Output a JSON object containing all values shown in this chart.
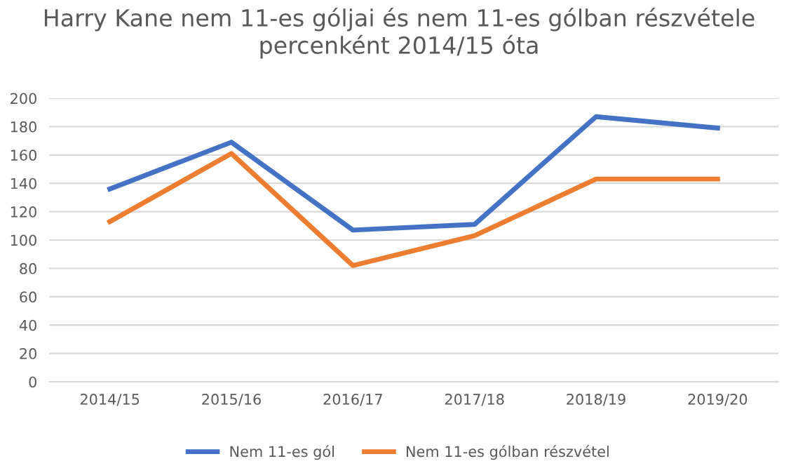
{
  "chart_data": {
    "type": "line",
    "title": "Harry Kane nem 11-es góljai és nem 11-es gólban részvétele\npercenként 2014/15 óta",
    "categories": [
      "2014/15",
      "2015/16",
      "2016/17",
      "2017/18",
      "2018/19",
      "2019/20"
    ],
    "series": [
      {
        "name": "Nem 11-es gól",
        "color": "#4472c4",
        "values": [
          136,
          169,
          107,
          111,
          187,
          179
        ]
      },
      {
        "name": "Nem 11-es gólban részvétel",
        "color": "#ed7d31",
        "values": [
          113,
          161,
          82,
          103,
          143,
          143
        ]
      }
    ],
    "ylim": [
      0,
      200
    ],
    "yticks": [
      0,
      20,
      40,
      60,
      80,
      100,
      120,
      140,
      160,
      180,
      200
    ],
    "grid": "y",
    "legend": "bottom",
    "marker": "none",
    "line_style": "solid"
  }
}
